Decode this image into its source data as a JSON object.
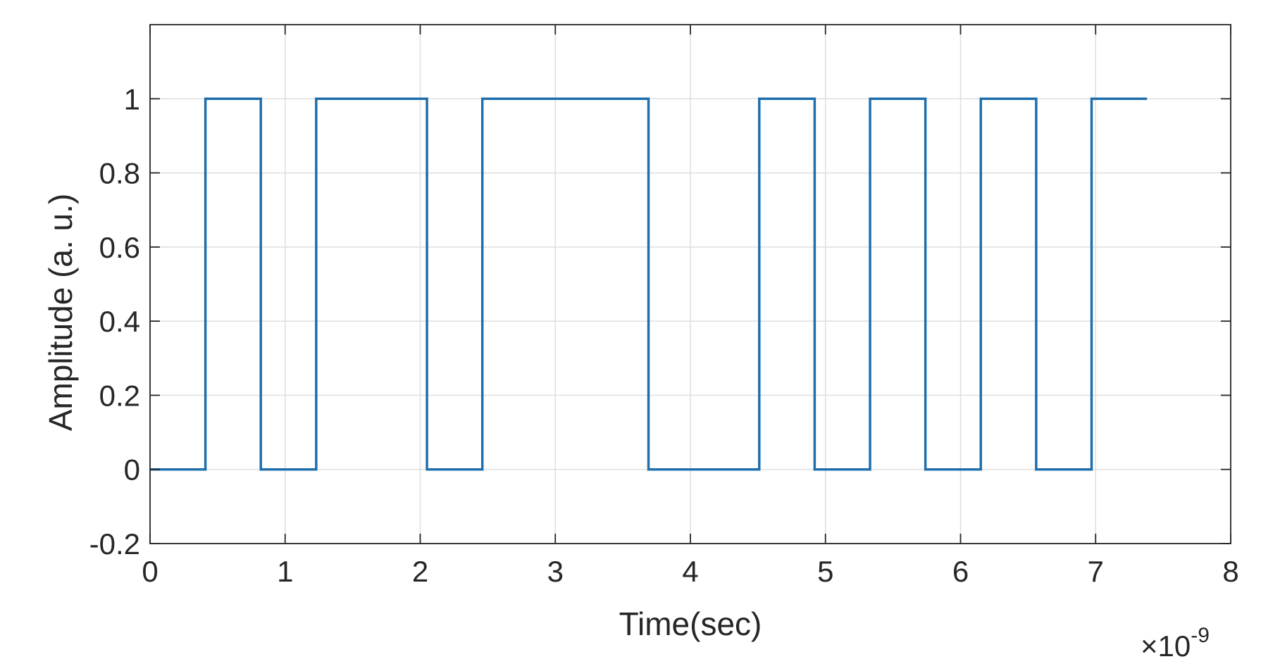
{
  "chart_data": {
    "type": "line",
    "xlabel": "Time(sec)",
    "ylabel": "Amplitude (a. u.)",
    "x_exponent_label": {
      "prefix": "×10",
      "exponent": "-9"
    },
    "xlim": [
      0,
      8
    ],
    "ylim": [
      -0.2,
      1.2
    ],
    "x_ticks": [
      0,
      1,
      2,
      3,
      4,
      5,
      6,
      7,
      8
    ],
    "x_tick_labels": [
      "0",
      "1",
      "2",
      "3",
      "4",
      "5",
      "6",
      "7",
      "8"
    ],
    "y_ticks": [
      -0.2,
      0,
      0.2,
      0.4,
      0.6,
      0.8,
      1
    ],
    "y_tick_labels": [
      "-0.2",
      "0",
      "0.2",
      "0.4",
      "0.6",
      "0.8",
      "1"
    ],
    "grid": true,
    "series": [
      {
        "color": "#1f6fad",
        "x": [
          0,
          0.41,
          0.41,
          0.82,
          0.82,
          1.23,
          1.23,
          2.05,
          2.05,
          2.46,
          2.46,
          3.69,
          3.69,
          4.51,
          4.51,
          4.92,
          4.92,
          5.33,
          5.33,
          5.74,
          5.74,
          6.15,
          6.15,
          6.56,
          6.56,
          6.97,
          6.97,
          7.38
        ],
        "y": [
          0,
          0,
          1,
          1,
          0,
          0,
          1,
          1,
          0,
          0,
          1,
          1,
          0,
          0,
          1,
          1,
          0,
          0,
          1,
          1,
          0,
          0,
          1,
          1,
          0,
          0,
          1,
          1
        ]
      }
    ]
  }
}
